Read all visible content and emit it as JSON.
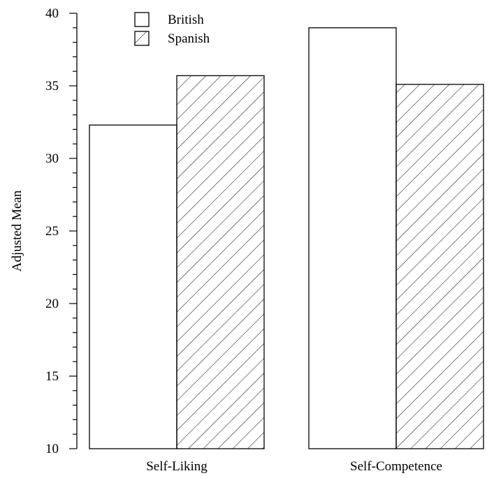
{
  "chart_data": {
    "type": "bar",
    "categories": [
      "Self-Liking",
      "Self-Competence"
    ],
    "series": [
      {
        "name": "British",
        "values": [
          32.3,
          39.0
        ],
        "fill": "none"
      },
      {
        "name": "Spanish",
        "values": [
          35.7,
          35.1
        ],
        "fill": "hatch"
      }
    ],
    "title": "",
    "xlabel": "",
    "ylabel": "Adjusted Mean",
    "ylim": [
      10,
      40
    ],
    "yticks": [
      10,
      15,
      20,
      25,
      30,
      35,
      40
    ],
    "yticks_minor_step": 1,
    "grid": false,
    "legend_position": "top-left"
  }
}
